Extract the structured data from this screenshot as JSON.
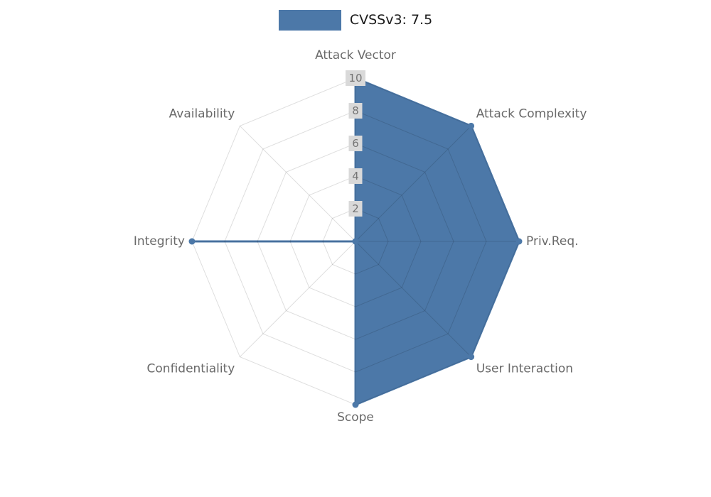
{
  "legend": {
    "label": "CVSSv3: 7.5",
    "swatch_color": "#4c78a8"
  },
  "chart_data": {
    "type": "radar",
    "title": "CVSSv3: 7.5",
    "categories": [
      "Attack Vector",
      "Attack Complexity",
      "Priv.Req.",
      "User Interaction",
      "Scope",
      "Confidentiality",
      "Integrity",
      "Availability"
    ],
    "series": [
      {
        "name": "CVSSv3: 7.5",
        "color": "#4c78a8",
        "values": [
          10,
          10,
          10,
          10,
          10,
          0,
          10,
          0
        ]
      }
    ],
    "rlim": [
      0,
      10
    ],
    "ticks": [
      2,
      4,
      6,
      8,
      10
    ],
    "grid": true,
    "legend_position": "top-center",
    "center": [
      500,
      340
    ],
    "radius_px": 230
  },
  "style": {
    "series_color": "#4c78a8",
    "grid_color": "rgba(0,0,0,0.13)",
    "tick_bg": "#d9d9d9",
    "tick_color": "#757575",
    "axis_label_color": "#696969",
    "legend_text_color": "#1a1a1a"
  }
}
